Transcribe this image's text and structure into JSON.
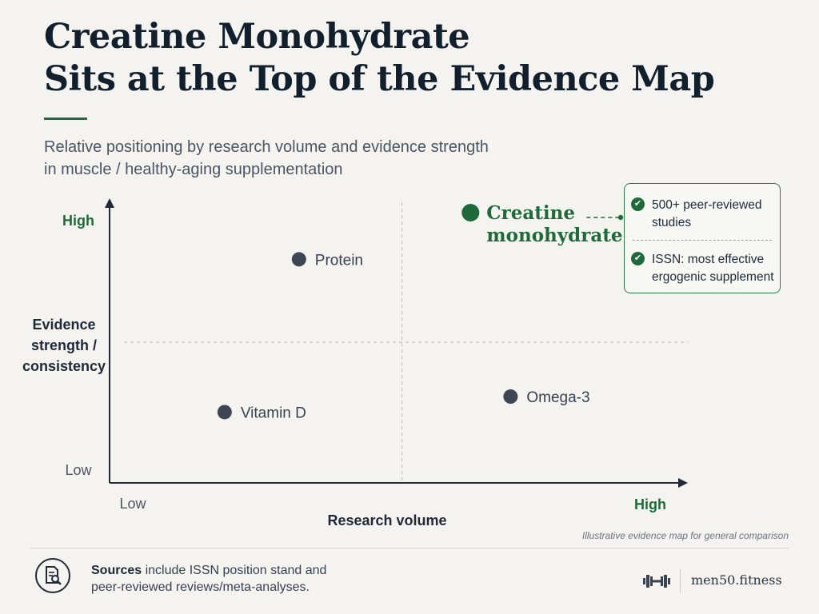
{
  "title": {
    "line1": "Creatine Monohydrate",
    "line2": "Sits at the Top of the Evidence Map"
  },
  "subtitle": {
    "line1": "Relative positioning by research volume and evidence strength",
    "line2": "in muscle / healthy-aging supplementation"
  },
  "colors": {
    "accent": "#1f6a3a",
    "point": "#3f4653",
    "axis": "#1f2937",
    "gridline": "#b9b9b4",
    "background": "#f4f3ef"
  },
  "chart_data": {
    "type": "scatter",
    "title": "",
    "xlabel": "Research volume",
    "ylabel_lines": [
      "Evidence",
      "strength /",
      "consistency"
    ],
    "x_ticks": [
      "Low",
      "High"
    ],
    "y_ticks": [
      "Low",
      "High"
    ],
    "xlim": [
      0,
      1
    ],
    "ylim": [
      0,
      1
    ],
    "quadrant_dividers": {
      "x": 0.5,
      "y": 0.5
    },
    "grid": false,
    "legend": "none",
    "points": [
      {
        "label_lines": [
          "Protein"
        ],
        "x": 0.32,
        "y": 0.82,
        "highlight": false
      },
      {
        "label_lines": [
          "Creatine",
          "monohydrate"
        ],
        "x": 0.62,
        "y": 1.0,
        "highlight": true
      },
      {
        "label_lines": [
          "Vitamin D"
        ],
        "x": 0.19,
        "y": 0.23,
        "highlight": false
      },
      {
        "label_lines": [
          "Omega-3"
        ],
        "x": 0.69,
        "y": 0.29,
        "highlight": false
      }
    ]
  },
  "callout": {
    "items": [
      {
        "icon": "check-circle-icon",
        "line1": "500+ peer-reviewed",
        "line2": "studies"
      },
      {
        "icon": "check-circle-icon",
        "line1": "ISSN: most effective",
        "line2": "ergogenic supplement"
      }
    ]
  },
  "footnote": "Illustrative evidence map for general comparison",
  "footer": {
    "icon": "document-search-icon",
    "sources_bold": "Sources",
    "sources_line1_rest": " include ISSN position stand and",
    "sources_line2": "peer-reviewed reviews/meta-analyses.",
    "brand_icon": "dumbbell-icon",
    "brand": "men50.fitness"
  }
}
